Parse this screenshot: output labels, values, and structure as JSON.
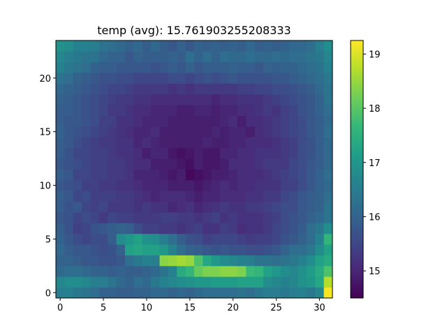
{
  "chart_data": {
    "type": "heatmap",
    "title": "temp (avg): 15.761903255208333",
    "xlabel": "",
    "ylabel": "",
    "colormap": "viridis",
    "x_range": [
      0,
      31
    ],
    "y_range": [
      0,
      23
    ],
    "y_origin": "lower",
    "xlim": [
      -0.5,
      31.5
    ],
    "ylim": [
      -0.5,
      23.5
    ],
    "clim": [
      14.5,
      19.25
    ],
    "x_ticks": [
      0,
      5,
      10,
      15,
      20,
      25,
      30
    ],
    "y_ticks": [
      0,
      5,
      10,
      15,
      20
    ],
    "colorbar_ticks": [
      15,
      16,
      17,
      18,
      19
    ],
    "grid": false,
    "rows_bottom_to_top": [
      [
        16.5,
        16.6,
        16.4,
        16.3,
        16.2,
        16.0,
        16.0,
        15.9,
        15.9,
        16.0,
        16.0,
        16.1,
        16.1,
        16.0,
        16.1,
        16.0,
        16.1,
        16.2,
        16.2,
        16.2,
        16.2,
        16.3,
        16.2,
        16.4,
        16.5,
        16.5,
        16.4,
        16.5,
        16.6,
        16.4,
        16.7,
        19.2
      ],
      [
        16.7,
        16.8,
        16.8,
        16.7,
        16.5,
        16.5,
        16.3,
        16.1,
        16.0,
        16.2,
        16.1,
        16.4,
        16.6,
        16.7,
        16.8,
        16.9,
        17.0,
        17.0,
        17.1,
        17.1,
        17.1,
        17.2,
        17.2,
        17.2,
        16.8,
        16.7,
        16.6,
        16.7,
        16.9,
        17.0,
        17.3,
        18.7
      ],
      [
        16.1,
        16.2,
        16.2,
        16.1,
        16.0,
        16.0,
        15.9,
        16.0,
        15.9,
        15.9,
        16.0,
        16.1,
        16.3,
        16.6,
        17.4,
        17.6,
        18.1,
        18.3,
        18.3,
        18.4,
        18.4,
        18.3,
        17.7,
        17.6,
        17.2,
        17.0,
        16.8,
        16.7,
        16.9,
        17.1,
        17.4,
        17.9
      ],
      [
        16.0,
        16.0,
        15.9,
        15.8,
        15.8,
        15.7,
        15.7,
        15.8,
        16.2,
        16.4,
        16.6,
        16.5,
        18.4,
        18.5,
        18.6,
        18.5,
        17.9,
        17.3,
        17.0,
        16.8,
        16.7,
        16.6,
        16.5,
        16.3,
        16.3,
        16.2,
        16.3,
        16.4,
        16.6,
        16.8,
        17.2,
        17.4
      ],
      [
        16.1,
        15.9,
        15.8,
        15.8,
        15.7,
        15.6,
        15.7,
        16.0,
        17.2,
        17.3,
        17.2,
        17.2,
        17.0,
        16.6,
        16.2,
        16.0,
        15.9,
        15.8,
        15.7,
        15.8,
        15.7,
        15.7,
        15.6,
        15.6,
        15.7,
        15.8,
        16.0,
        16.2,
        16.2,
        16.4,
        16.8,
        17.2
      ],
      [
        16.0,
        15.8,
        15.6,
        15.5,
        15.6,
        15.6,
        15.9,
        16.8,
        17.0,
        17.2,
        16.9,
        16.8,
        16.5,
        16.2,
        15.9,
        15.7,
        15.6,
        15.4,
        15.5,
        15.5,
        15.5,
        15.4,
        15.3,
        15.4,
        15.4,
        15.5,
        15.7,
        15.8,
        16.0,
        16.2,
        16.6,
        17.6
      ],
      [
        15.9,
        15.7,
        15.4,
        15.5,
        15.7,
        15.8,
        15.9,
        16.0,
        15.9,
        15.6,
        15.4,
        15.4,
        15.3,
        15.3,
        15.2,
        15.3,
        15.4,
        15.2,
        15.2,
        15.4,
        15.3,
        15.1,
        15.2,
        15.2,
        15.3,
        15.5,
        15.6,
        15.7,
        15.9,
        16.2,
        16.4,
        16.8
      ],
      [
        15.8,
        15.7,
        15.5,
        15.6,
        15.5,
        15.3,
        15.5,
        15.4,
        15.4,
        15.3,
        15.3,
        15.3,
        15.4,
        15.4,
        15.3,
        15.3,
        15.2,
        15.3,
        15.4,
        15.2,
        15.3,
        15.2,
        15.2,
        15.2,
        15.3,
        15.4,
        15.6,
        15.7,
        15.8,
        16.0,
        16.1,
        16.3
      ],
      [
        15.9,
        15.7,
        15.8,
        15.5,
        15.4,
        15.5,
        15.3,
        15.3,
        15.3,
        15.2,
        15.3,
        15.2,
        15.2,
        15.0,
        15.1,
        15.2,
        15.0,
        15.1,
        15.2,
        15.3,
        15.2,
        15.2,
        15.3,
        15.3,
        15.4,
        15.5,
        15.6,
        15.6,
        15.8,
        15.9,
        16.0,
        16.3
      ],
      [
        15.9,
        15.8,
        15.5,
        15.6,
        15.4,
        15.4,
        15.4,
        15.3,
        15.3,
        15.2,
        15.1,
        15.0,
        15.1,
        15.1,
        15.1,
        15.0,
        14.9,
        15.0,
        15.0,
        15.1,
        15.1,
        15.1,
        15.2,
        15.2,
        15.3,
        15.3,
        15.5,
        15.6,
        15.8,
        15.9,
        16.0,
        16.2
      ],
      [
        15.8,
        15.7,
        15.6,
        15.4,
        15.4,
        15.3,
        15.3,
        15.2,
        15.2,
        15.1,
        15.0,
        15.0,
        15.0,
        14.9,
        14.9,
        14.9,
        14.8,
        14.9,
        15.0,
        15.1,
        15.0,
        15.1,
        15.1,
        15.2,
        15.2,
        15.2,
        15.4,
        15.4,
        15.6,
        15.8,
        16.0,
        16.1
      ],
      [
        15.9,
        15.8,
        15.5,
        15.5,
        15.4,
        15.4,
        15.3,
        15.3,
        15.2,
        15.0,
        15.0,
        15.0,
        14.9,
        14.8,
        14.9,
        14.6,
        14.7,
        14.8,
        14.9,
        14.9,
        15.0,
        15.1,
        15.1,
        15.1,
        15.2,
        15.3,
        15.4,
        15.5,
        15.6,
        15.8,
        16.0,
        16.2
      ],
      [
        15.8,
        15.7,
        15.6,
        15.5,
        15.4,
        15.4,
        15.3,
        15.3,
        15.2,
        15.1,
        15.1,
        14.9,
        14.9,
        14.9,
        14.8,
        14.7,
        14.9,
        14.8,
        14.8,
        14.9,
        15.1,
        15.1,
        15.1,
        15.2,
        15.3,
        15.3,
        15.3,
        15.5,
        15.6,
        15.8,
        15.9,
        16.1
      ],
      [
        15.9,
        15.7,
        15.5,
        15.5,
        15.4,
        15.4,
        15.3,
        15.2,
        15.2,
        15.1,
        14.9,
        15.0,
        15.0,
        14.8,
        14.7,
        14.8,
        14.9,
        14.8,
        14.8,
        15.0,
        15.0,
        15.1,
        15.1,
        15.2,
        15.2,
        15.2,
        15.3,
        15.4,
        15.6,
        15.7,
        15.9,
        16.1
      ],
      [
        15.9,
        15.8,
        15.6,
        15.5,
        15.4,
        15.3,
        15.3,
        15.2,
        15.2,
        15.0,
        15.1,
        15.0,
        14.9,
        14.9,
        14.9,
        14.9,
        14.9,
        15.0,
        14.9,
        14.9,
        15.0,
        15.0,
        15.1,
        15.1,
        15.1,
        15.2,
        15.3,
        15.4,
        15.6,
        15.7,
        15.9,
        16.1
      ],
      [
        16.0,
        15.8,
        15.7,
        15.6,
        15.5,
        15.4,
        15.3,
        15.2,
        15.1,
        15.0,
        15.0,
        15.1,
        14.9,
        14.9,
        14.9,
        14.9,
        14.9,
        14.9,
        15.0,
        14.9,
        15.0,
        15.0,
        14.9,
        15.1,
        15.2,
        15.3,
        15.4,
        15.5,
        15.6,
        15.8,
        15.9,
        16.2
      ],
      [
        15.9,
        15.8,
        15.8,
        15.7,
        15.6,
        15.4,
        15.4,
        15.2,
        15.2,
        15.1,
        15.0,
        15.0,
        15.0,
        14.9,
        14.9,
        14.9,
        14.9,
        14.9,
        14.9,
        15.0,
        15.1,
        14.9,
        15.1,
        15.1,
        15.2,
        15.3,
        15.4,
        15.5,
        15.6,
        15.8,
        15.9,
        16.1
      ],
      [
        15.9,
        15.9,
        15.8,
        15.7,
        15.6,
        15.5,
        15.3,
        15.3,
        15.2,
        15.1,
        15.1,
        15.0,
        15.0,
        15.0,
        14.9,
        14.9,
        15.0,
        15.0,
        14.9,
        15.0,
        15.0,
        15.1,
        15.1,
        15.2,
        15.3,
        15.2,
        15.4,
        15.5,
        15.7,
        15.8,
        16.0,
        16.2
      ],
      [
        16.0,
        15.9,
        15.8,
        15.7,
        15.6,
        15.5,
        15.4,
        15.3,
        15.3,
        15.2,
        15.2,
        15.1,
        15.1,
        15.1,
        15.1,
        15.1,
        15.1,
        15.1,
        15.0,
        15.1,
        15.1,
        15.2,
        15.2,
        15.2,
        15.3,
        15.4,
        15.5,
        15.6,
        15.7,
        15.8,
        16.0,
        16.3
      ],
      [
        16.1,
        16.0,
        15.9,
        15.8,
        15.7,
        15.6,
        15.5,
        15.5,
        15.4,
        15.3,
        15.3,
        15.3,
        15.3,
        15.2,
        15.3,
        15.2,
        15.3,
        15.3,
        15.3,
        15.3,
        15.3,
        15.4,
        15.4,
        15.5,
        15.5,
        15.6,
        15.6,
        15.7,
        15.8,
        15.9,
        16.1,
        16.3
      ],
      [
        16.3,
        16.2,
        16.0,
        15.9,
        15.8,
        15.7,
        15.7,
        15.6,
        15.6,
        15.5,
        15.5,
        15.5,
        15.5,
        15.6,
        15.6,
        15.5,
        15.6,
        15.7,
        15.6,
        15.7,
        15.8,
        15.7,
        15.7,
        15.7,
        15.7,
        15.8,
        15.8,
        15.9,
        16.0,
        16.1,
        16.2,
        16.4
      ],
      [
        16.6,
        16.4,
        16.3,
        16.2,
        16.0,
        15.9,
        15.9,
        15.8,
        15.8,
        15.8,
        15.8,
        15.7,
        15.8,
        15.9,
        15.8,
        16.0,
        15.8,
        15.9,
        15.9,
        15.9,
        16.0,
        15.9,
        15.9,
        15.8,
        16.0,
        15.9,
        16.0,
        16.0,
        16.1,
        16.2,
        16.3,
        16.6
      ],
      [
        16.7,
        16.5,
        16.4,
        16.3,
        16.3,
        16.1,
        16.0,
        16.0,
        15.8,
        16.0,
        15.9,
        15.9,
        15.9,
        16.0,
        15.9,
        16.2,
        16.0,
        16.2,
        16.0,
        16.2,
        16.1,
        16.1,
        16.2,
        16.1,
        16.1,
        16.2,
        16.1,
        16.2,
        16.2,
        16.3,
        16.4,
        16.7
      ],
      [
        16.9,
        16.8,
        16.6,
        16.6,
        16.5,
        16.3,
        16.2,
        16.1,
        16.0,
        16.1,
        15.9,
        16.1,
        15.9,
        15.8,
        16.0,
        15.8,
        16.0,
        15.9,
        16.0,
        15.9,
        16.0,
        15.9,
        16.1,
        15.9,
        16.0,
        15.9,
        16.0,
        16.1,
        16.1,
        16.2,
        16.5,
        16.8
      ]
    ]
  }
}
